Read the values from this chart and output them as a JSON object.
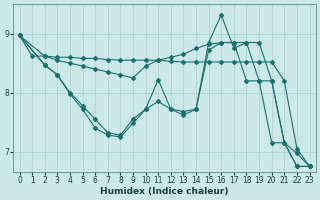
{
  "xlabel": "Humidex (Indice chaleur)",
  "background_color": "#cce8e8",
  "grid_color": "#aad0d0",
  "line_color": "#1a7070",
  "xlim": [
    -0.5,
    23.5
  ],
  "ylim": [
    6.65,
    9.5
  ],
  "yticks": [
    7,
    8,
    9
  ],
  "xticks": [
    0,
    1,
    2,
    3,
    4,
    5,
    6,
    7,
    8,
    9,
    10,
    11,
    12,
    13,
    14,
    15,
    16,
    17,
    18,
    19,
    20,
    21,
    22,
    23
  ],
  "series": [
    {
      "x": [
        0,
        1,
        2,
        3,
        4,
        5,
        6,
        7,
        8,
        9,
        10,
        11,
        12,
        13,
        14,
        15,
        16,
        17,
        18,
        19,
        20,
        21,
        22,
        23
      ],
      "y": [
        8.97,
        8.62,
        8.62,
        8.6,
        8.6,
        8.58,
        8.58,
        8.56,
        8.55,
        8.55,
        8.55,
        8.55,
        8.53,
        8.52,
        8.52,
        8.52,
        8.52,
        8.52,
        8.52,
        8.52,
        8.52,
        8.2,
        7.05,
        6.75
      ]
    },
    {
      "x": [
        0,
        2,
        3,
        4,
        5,
        6,
        7,
        8,
        9,
        10,
        11,
        12,
        13,
        14,
        15,
        16,
        17,
        18,
        19,
        20,
        21,
        22,
        23
      ],
      "y": [
        8.97,
        8.62,
        8.55,
        8.5,
        8.45,
        8.4,
        8.35,
        8.3,
        8.25,
        8.45,
        8.55,
        8.6,
        8.65,
        8.75,
        8.82,
        8.85,
        8.85,
        8.85,
        8.85,
        8.2,
        7.15,
        6.75,
        6.75
      ]
    },
    {
      "x": [
        0,
        2,
        3,
        4,
        5,
        6,
        7,
        8,
        9,
        10,
        11,
        12,
        13,
        14,
        15,
        16,
        17,
        18,
        19,
        20,
        21,
        22,
        23
      ],
      "y": [
        8.97,
        8.47,
        8.3,
        8.0,
        7.78,
        7.55,
        7.32,
        7.28,
        7.55,
        7.72,
        7.85,
        7.72,
        7.62,
        7.72,
        8.85,
        9.32,
        8.75,
        8.85,
        8.2,
        8.2,
        7.15,
        6.75,
        6.75
      ]
    },
    {
      "x": [
        0,
        2,
        3,
        4,
        5,
        6,
        7,
        8,
        9,
        10,
        11,
        12,
        13,
        14,
        15,
        16,
        17,
        18,
        19,
        20,
        21,
        22,
        23
      ],
      "y": [
        8.97,
        8.47,
        8.3,
        7.98,
        7.72,
        7.4,
        7.28,
        7.25,
        7.48,
        7.72,
        8.22,
        7.72,
        7.68,
        7.72,
        8.72,
        8.85,
        8.85,
        8.2,
        8.2,
        7.15,
        7.15,
        6.97,
        6.75
      ]
    }
  ]
}
